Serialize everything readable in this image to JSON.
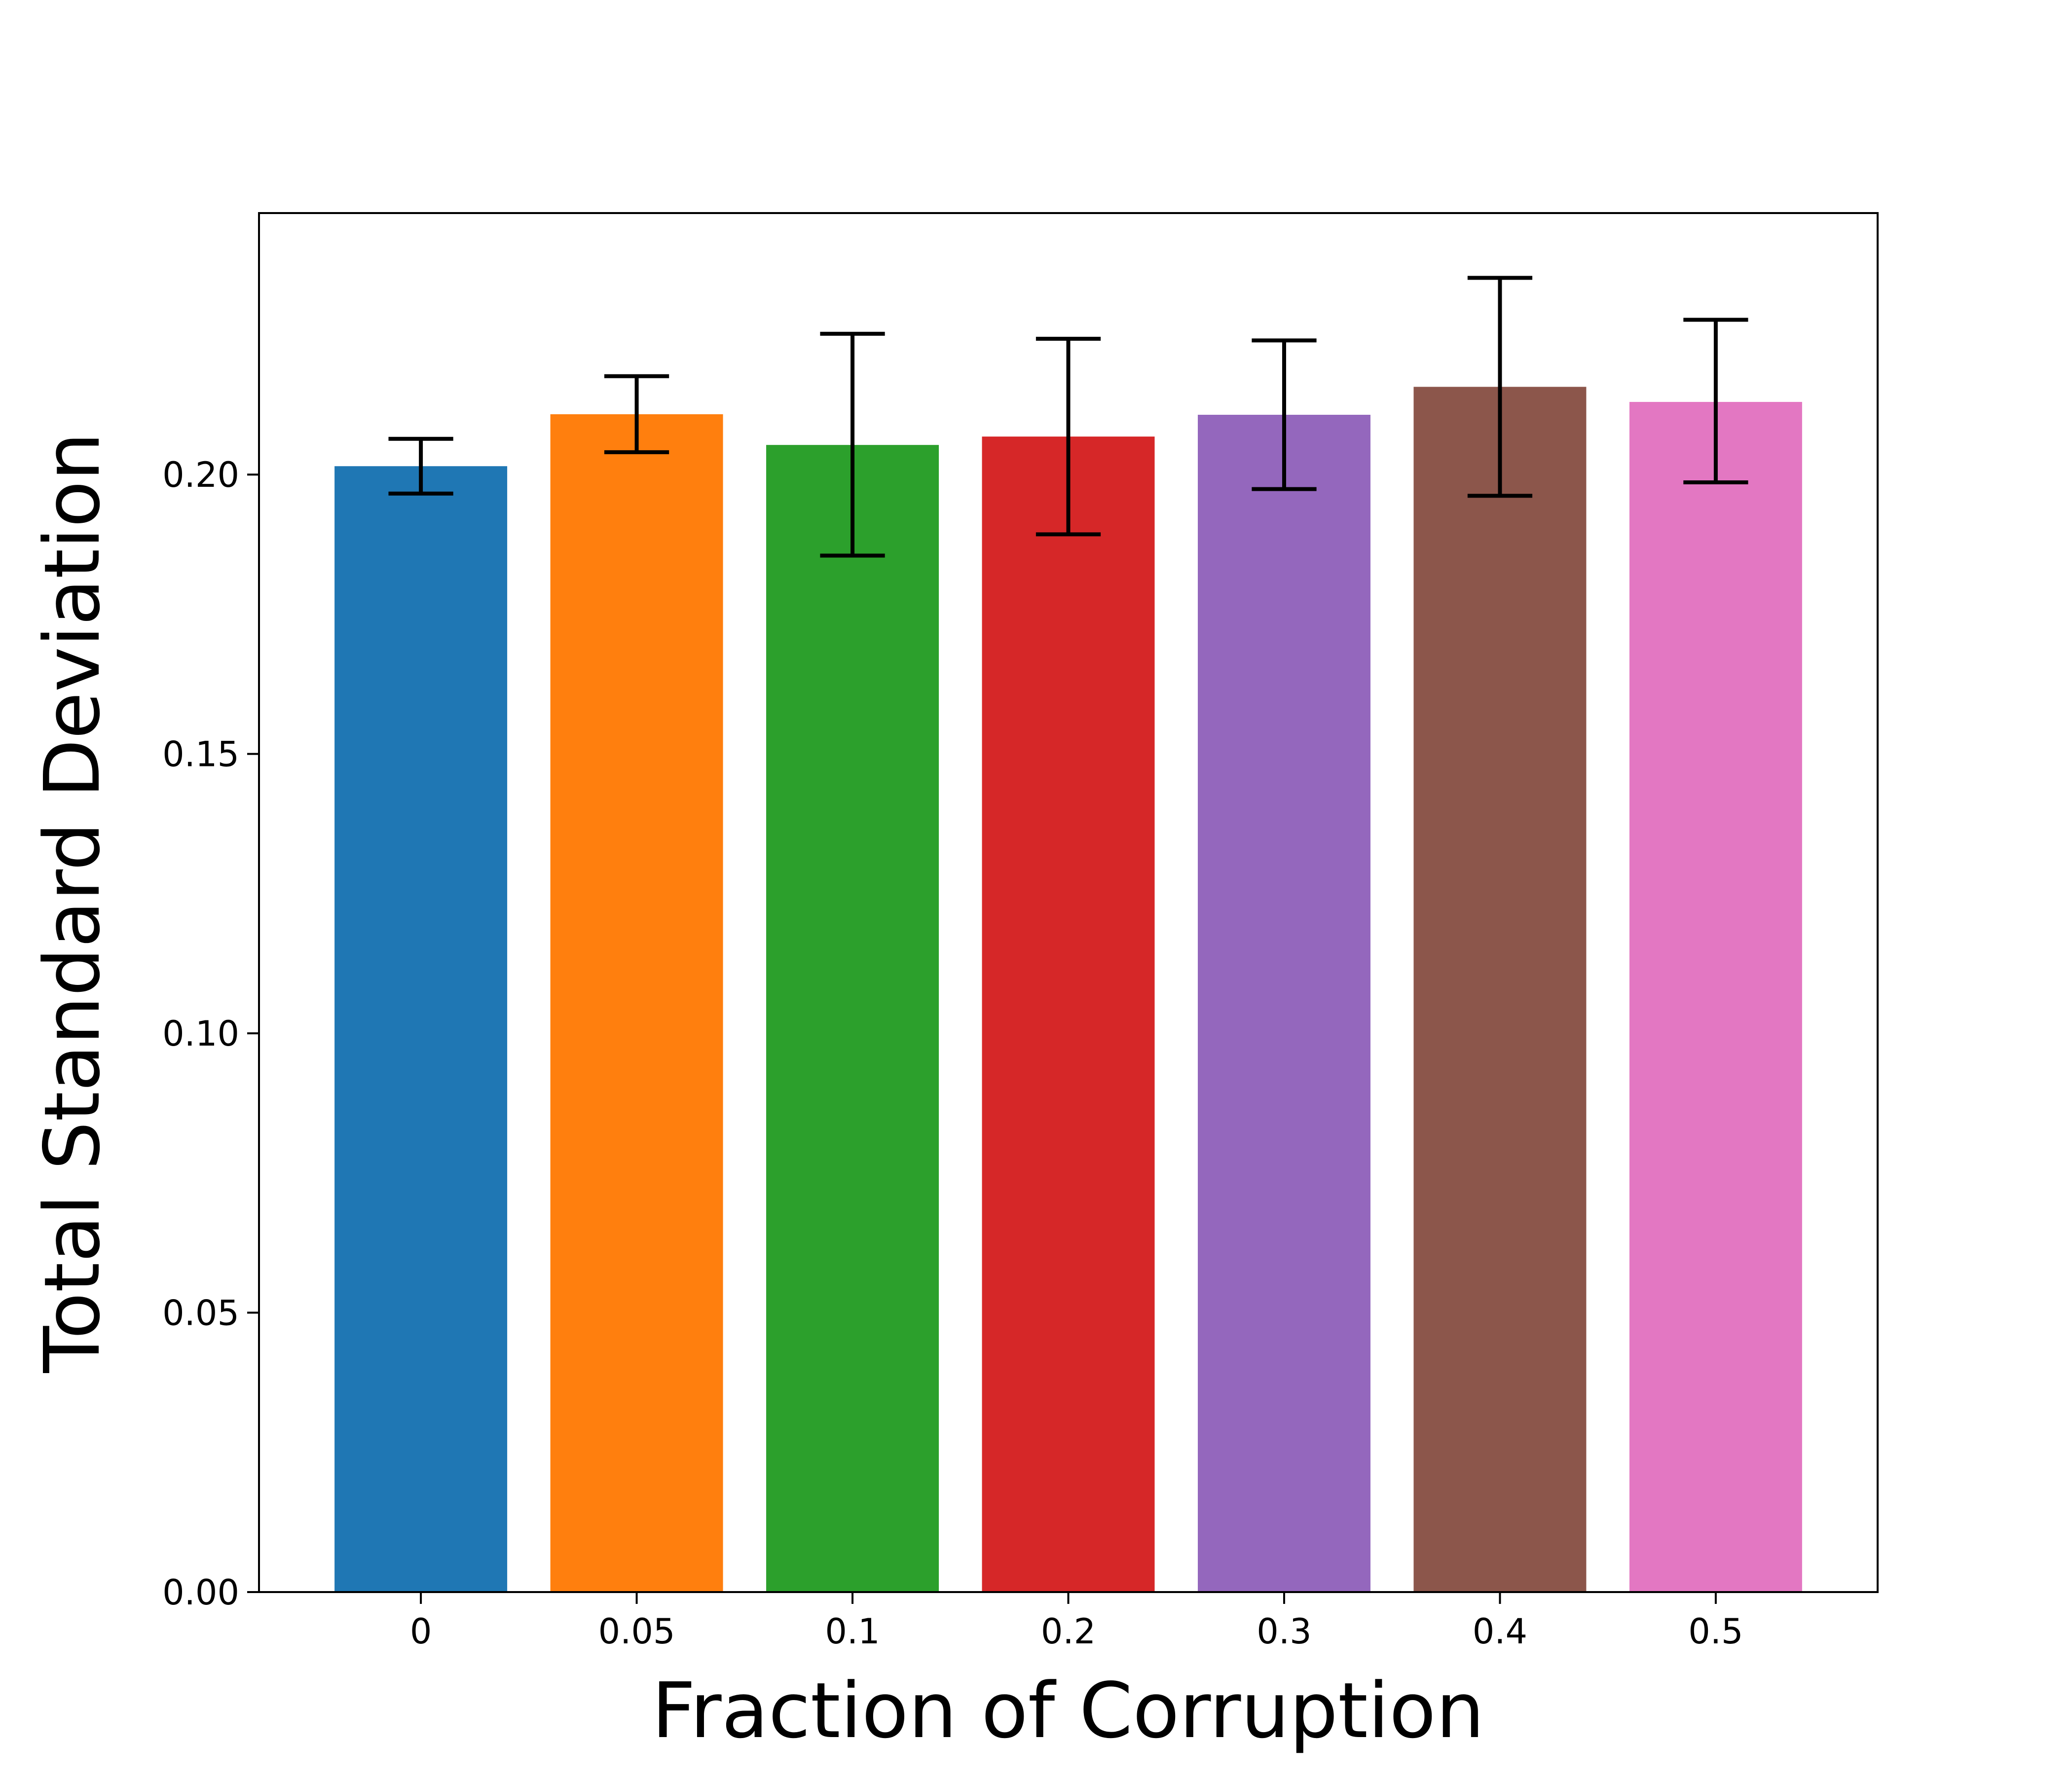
{
  "chart_data": {
    "type": "bar",
    "title": "",
    "xlabel": "Fraction of Corruption",
    "ylabel": "Total Standard Deviation",
    "categories": [
      "0",
      "0.05",
      "0.1",
      "0.2",
      "0.3",
      "0.4",
      "0.5"
    ],
    "values": [
      0.2015,
      0.2108,
      0.2053,
      0.2068,
      0.2107,
      0.2157,
      0.213
    ],
    "error_bars": [
      {
        "low": 0.1966,
        "high": 0.2064
      },
      {
        "low": 0.204,
        "high": 0.2176
      },
      {
        "low": 0.1855,
        "high": 0.2252
      },
      {
        "low": 0.1893,
        "high": 0.2243
      },
      {
        "low": 0.1974,
        "high": 0.224
      },
      {
        "low": 0.1962,
        "high": 0.2352
      },
      {
        "low": 0.1986,
        "high": 0.2277
      }
    ],
    "colors": [
      "#1f77b4",
      "#ff7f0e",
      "#2ca02c",
      "#d62728",
      "#9467bd",
      "#8c564b",
      "#e377c2"
    ],
    "yticks": [
      "0.00",
      "0.05",
      "0.10",
      "0.15",
      "0.20"
    ],
    "ylim": [
      0,
      0.2468
    ],
    "grid": false,
    "legend": "none"
  }
}
